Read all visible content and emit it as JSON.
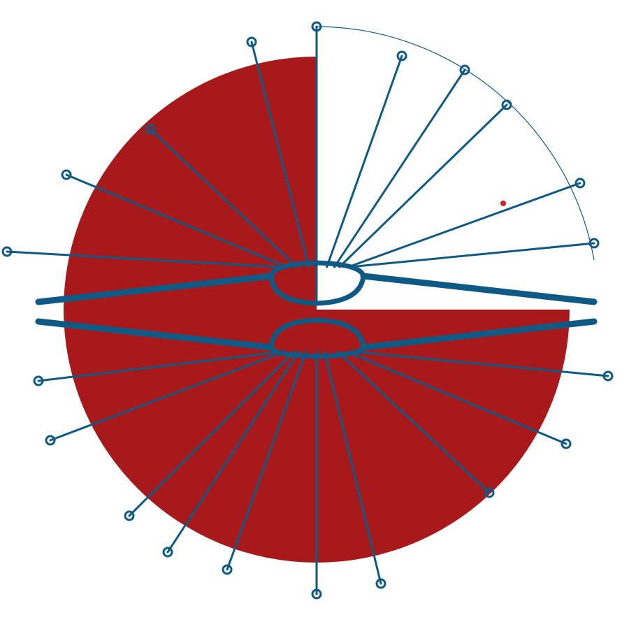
{
  "artwork": {
    "colors": {
      "background": "#ffffff",
      "disc": "#a8191b",
      "lines": "#0e5a84",
      "dot": "#d11f26"
    },
    "icons": [
      "radial-emblem",
      "eye-shape",
      "ray-glyph"
    ]
  }
}
